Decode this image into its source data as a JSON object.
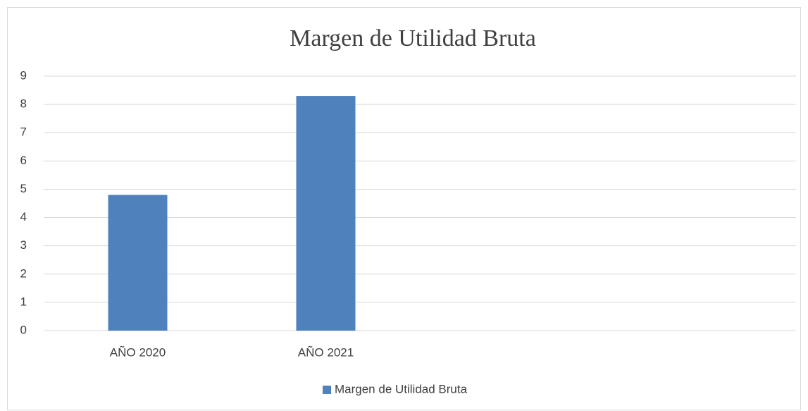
{
  "chart_data": {
    "type": "bar",
    "title": "Margen de Utilidad Bruta",
    "categories": [
      "AÑO 2020",
      "AÑO 2021",
      null,
      null
    ],
    "series": [
      {
        "name": "Margen de Utilidad Bruta",
        "color": "#4f81bd",
        "values": [
          4.8,
          8.3,
          null,
          null
        ]
      }
    ],
    "ylim": [
      0,
      9
    ],
    "yticks": [
      0,
      1,
      2,
      3,
      4,
      5,
      6,
      7,
      8,
      9
    ],
    "grid": true,
    "legend": "bottom"
  }
}
